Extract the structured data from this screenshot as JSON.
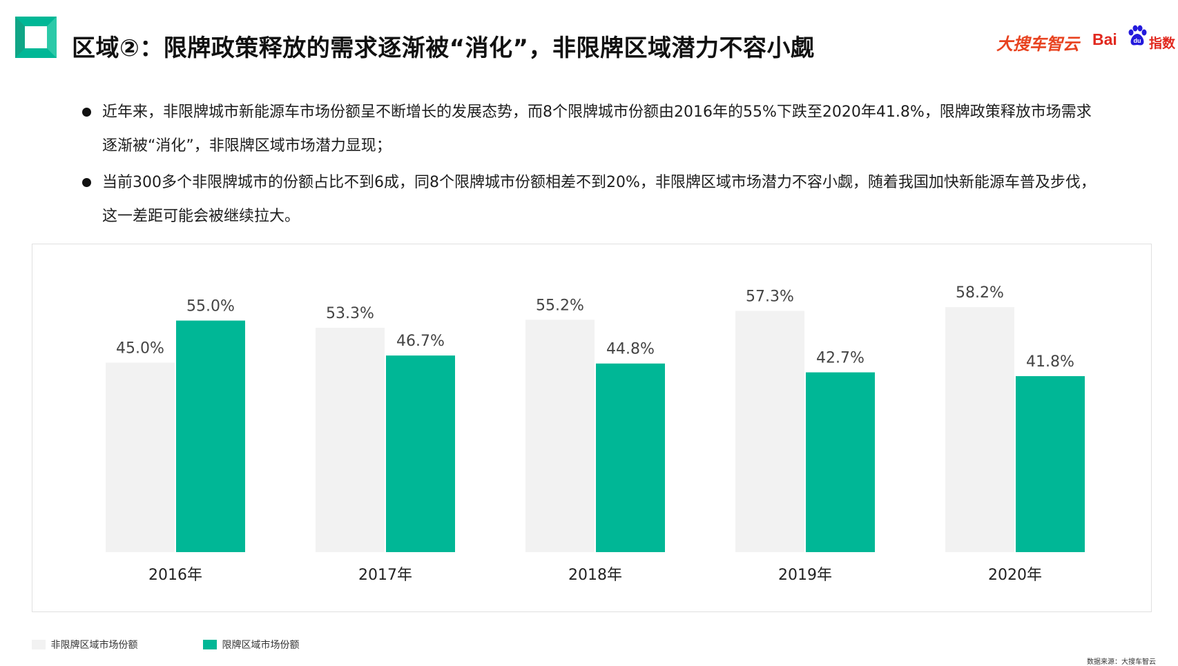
{
  "header": {
    "title": "区域②：限牌政策释放的需求逐渐被“消化”，非限牌区域潜力不容小觑",
    "brand_zhiyun": "大搜车智云",
    "brand_baidu": "Bai",
    "brand_baidu_index": "指数"
  },
  "bullets": [
    "近年来，非限牌城市新能源车市场份额呈不断增长的发展态势，而8个限牌城市份额由2016年的55%下跌至2020年41.8%，限牌政策释放市场需求逐渐被“消化”，非限牌区域市场潜力显现；",
    "当前300多个非限牌城市的份额占比不到6成，同8个限牌城市份额相差不到20%，非限牌区域市场潜力不容小觑，随着我国加快新能源车普及步伐，这一差距可能会被继续拉大。"
  ],
  "colors": {
    "accent": "#00b796",
    "non_restricted": "#f2f2f2",
    "brand_red": "#e8421f"
  },
  "chart_data": {
    "type": "bar",
    "categories": [
      "2016年",
      "2017年",
      "2018年",
      "2019年",
      "2020年"
    ],
    "series": [
      {
        "name": "非限牌区域市场份额",
        "values": [
          45.0,
          53.3,
          55.2,
          57.3,
          58.2
        ],
        "labels": [
          "45.0%",
          "53.3%",
          "55.2%",
          "57.3%",
          "58.2%"
        ],
        "color": "#f2f2f2"
      },
      {
        "name": "限牌区域市场份额",
        "values": [
          55.0,
          46.7,
          44.8,
          42.7,
          41.8
        ],
        "labels": [
          "55.0%",
          "46.7%",
          "44.8%",
          "42.7%",
          "41.8%"
        ],
        "color": "#00b796"
      }
    ],
    "ylim": [
      0,
      60
    ],
    "grid": false,
    "legend_position": "bottom-left"
  },
  "source": "数据来源：大搜车智云"
}
